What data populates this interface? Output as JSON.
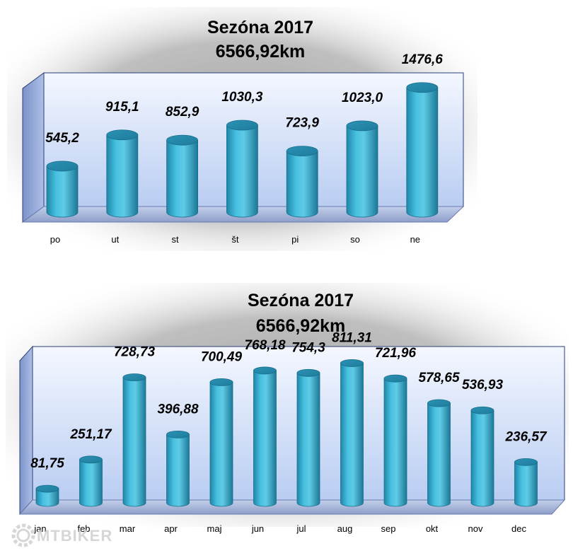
{
  "chart_data": [
    {
      "type": "bar",
      "title": "Sezóna 2017",
      "subtitle": "6566,92km",
      "categories": [
        "po",
        "ut",
        "st",
        "št",
        "pi",
        "so",
        "ne"
      ],
      "values": [
        545.2,
        915.1,
        852.9,
        1030.3,
        723.9,
        1023.0,
        1476.6
      ],
      "data_labels": [
        "545,2",
        "915,1",
        "852,9",
        "1030,3",
        "723,9",
        "1023,0",
        "1476,6"
      ],
      "xlabel": "",
      "ylabel": "",
      "ylim": [
        0,
        1550
      ],
      "grid": false,
      "legend": "none",
      "bar_shape": "cylinder"
    },
    {
      "type": "bar",
      "title": "Sezóna 2017",
      "subtitle": "6566,92km",
      "categories": [
        "jan",
        "feb",
        "mar",
        "apr",
        "maj",
        "jun",
        "jul",
        "aug",
        "sep",
        "okt",
        "nov",
        "dec"
      ],
      "values": [
        81.75,
        251.17,
        728.73,
        396.88,
        700.49,
        768.18,
        754.3,
        811.31,
        721.96,
        578.65,
        536.93,
        236.57
      ],
      "data_labels": [
        "81,75",
        "251,17",
        "728,73",
        "396,88",
        "700,49",
        "768,18",
        "754,3",
        "811,31",
        "721,96",
        "578,65",
        "536,93",
        "236,57"
      ],
      "xlabel": "",
      "ylabel": "",
      "ylim": [
        0,
        850
      ],
      "grid": false,
      "legend": "none",
      "bar_shape": "cylinder"
    }
  ],
  "colors": {
    "bar": "#35aed0",
    "bar_dark": "#1d7fa0",
    "bar_top": "#2a93b6",
    "wall": "#dde8fb",
    "floor": "#a9b8dc"
  },
  "watermark": {
    "text": "MTBIKER",
    "icon": "gear-icon"
  }
}
